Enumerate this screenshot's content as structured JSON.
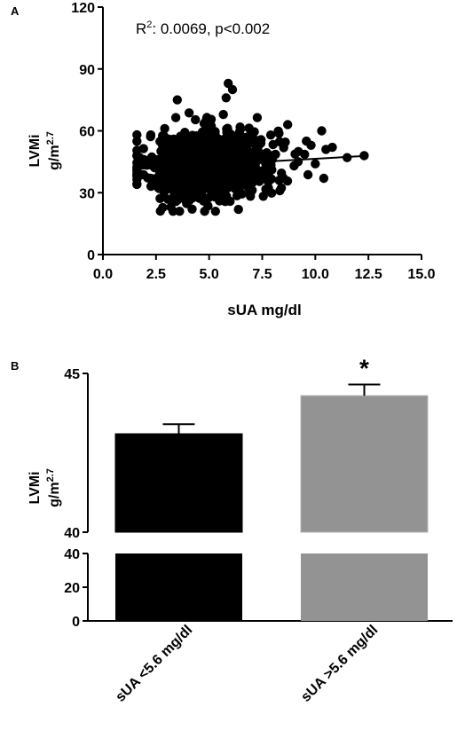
{
  "panels": {
    "a": {
      "label": "A"
    },
    "b": {
      "label": "B"
    }
  },
  "chart_data": [
    {
      "type": "scatter",
      "panel": "A",
      "xlabel": "sUA mg/dl",
      "ylabel": "LVMi",
      "ylabel_unit": "g/m",
      "ylabel_unit_exp": "2.7",
      "annotation_prefix": "R",
      "annotation_sup": "2",
      "annotation_rest": ": 0.0069, p<0.002",
      "xlim": [
        0,
        15
      ],
      "ylim": [
        0,
        120
      ],
      "xticks": [
        "0.0",
        "2.5",
        "5.0",
        "7.5",
        "10.0",
        "12.5",
        "15.0"
      ],
      "yticks": [
        "0",
        "30",
        "60",
        "90",
        "120"
      ],
      "regression": {
        "x": [
          1.6,
          12.3
        ],
        "y": [
          41.5,
          47.8
        ]
      },
      "grid": false,
      "legend": "none"
    },
    {
      "type": "bar",
      "panel": "B",
      "categories": [
        "sUA <5.6 mg/dl",
        "sUA >5.6 mg/dl"
      ],
      "values": [
        43.1,
        44.3
      ],
      "errors": [
        0.3,
        0.35
      ],
      "colors": [
        "#000000",
        "#939393"
      ],
      "ylabel": "LVMi",
      "ylabel_unit": "g/m",
      "ylabel_unit_exp": "2.7",
      "axis_break": true,
      "upper_range": [
        40,
        45
      ],
      "upper_ticks": [
        "40",
        "45"
      ],
      "lower_range": [
        0,
        40
      ],
      "lower_ticks": [
        "0",
        "20",
        "40"
      ],
      "significance": [
        "",
        "*"
      ],
      "grid": false,
      "legend": "none"
    }
  ]
}
